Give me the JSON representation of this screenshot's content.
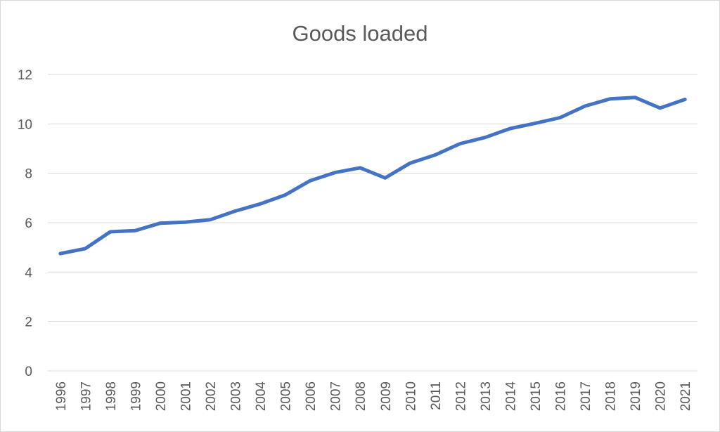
{
  "chart_data": {
    "type": "line",
    "title": "Goods loaded",
    "xlabel": "",
    "ylabel": "",
    "ylim": [
      0,
      12
    ],
    "yticks": [
      0,
      2,
      4,
      6,
      8,
      10,
      12
    ],
    "grid": true,
    "legend": "none",
    "categories": [
      "1996",
      "1997",
      "1998",
      "1999",
      "2000",
      "2001",
      "2002",
      "2003",
      "2004",
      "2005",
      "2006",
      "2007",
      "2008",
      "2009",
      "2010",
      "2011",
      "2012",
      "2013",
      "2014",
      "2015",
      "2016",
      "2017",
      "2018",
      "2019",
      "2020",
      "2021"
    ],
    "series": [
      {
        "values": [
          4.75,
          4.95,
          5.63,
          5.68,
          5.98,
          6.02,
          6.12,
          6.47,
          6.76,
          7.12,
          7.7,
          8.03,
          8.22,
          7.81,
          8.41,
          8.74,
          9.2,
          9.45,
          9.81,
          10.02,
          10.25,
          10.72,
          11.01,
          11.07,
          10.64,
          10.99
        ],
        "color": "#4472c4"
      }
    ]
  }
}
